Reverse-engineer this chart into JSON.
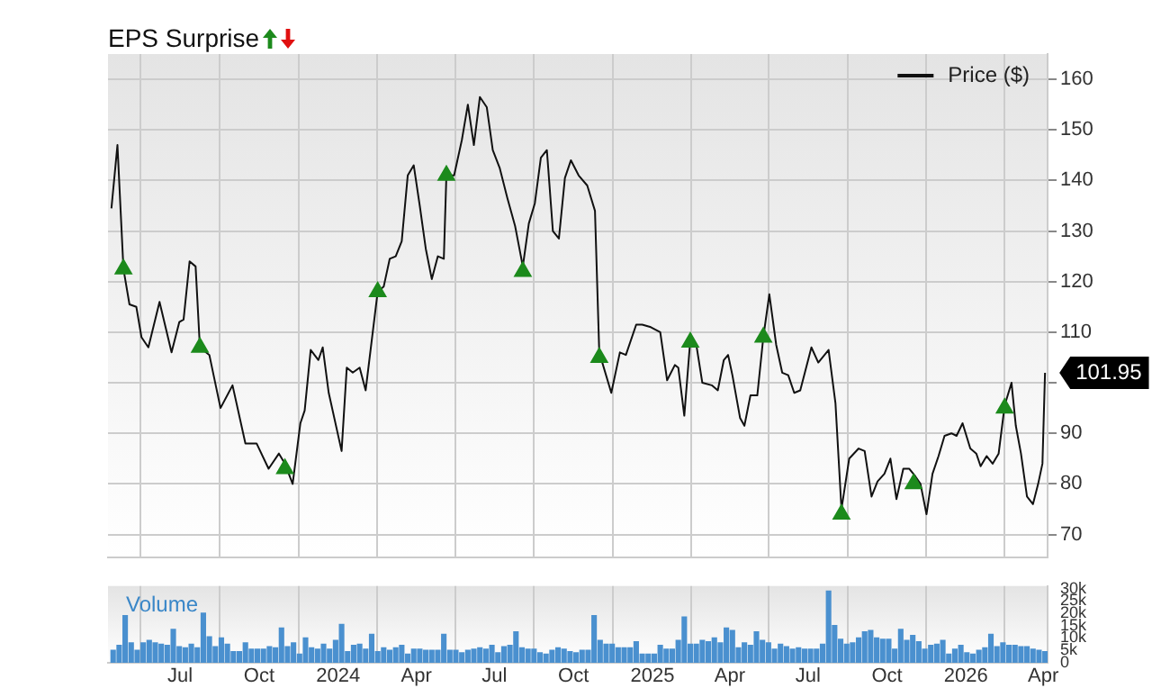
{
  "chart_data": [
    {
      "type": "line",
      "title": "EPS Surprise",
      "legend": "top right",
      "grid": true,
      "tick_labels": "y",
      "xlim": [
        "2023-04-08",
        "2026-04-06"
      ],
      "xticks": [
        {
          "value": "2023-07-01",
          "label": null
        },
        {
          "value": "2023-10-01",
          "label": null
        },
        {
          "value": "2024-01-01",
          "label": null
        },
        {
          "value": "2024-04-01",
          "label": null
        },
        {
          "value": "2024-07-01",
          "label": null
        },
        {
          "value": "2024-10-01",
          "label": null
        },
        {
          "value": "2025-01-01",
          "label": null
        },
        {
          "value": "2025-04-01",
          "label": null
        },
        {
          "value": "2025-07-01",
          "label": null
        },
        {
          "value": "2025-10-01",
          "label": null
        },
        {
          "value": "2026-01-01",
          "label": null
        },
        {
          "value": "2026-04-01",
          "label": null
        }
      ],
      "ylim": [
        65.5,
        165
      ],
      "yticks": [
        70,
        80,
        90,
        {
          "value": 100,
          "label": null
        },
        110,
        120,
        130,
        140,
        150,
        160
      ],
      "annotations": [
        {
          "text": "101.95",
          "x": "2026-04-03",
          "y": 101.95
        }
      ],
      "series": [
        {
          "name": "Price ($)",
          "type": "line",
          "color": "#111111",
          "x": [
            "2023-04-12",
            "2023-04-19",
            "2023-04-26",
            "2023-05-03",
            "2023-05-11",
            "2023-05-17",
            "2023-05-25",
            "2023-06-07",
            "2023-06-21",
            "2023-06-30",
            "2023-07-05",
            "2023-07-12",
            "2023-07-19",
            "2023-07-24",
            "2023-08-04",
            "2023-08-17",
            "2023-08-31",
            "2023-09-15",
            "2023-09-28",
            "2023-10-12",
            "2023-10-24",
            "2023-10-31",
            "2023-11-09",
            "2023-11-18",
            "2023-11-23",
            "2023-11-30",
            "2023-12-09",
            "2023-12-14",
            "2023-12-21",
            "2024-01-05",
            "2024-01-11",
            "2024-01-18",
            "2024-01-26",
            "2024-02-02",
            "2024-02-16",
            "2024-02-23",
            "2024-03-01",
            "2024-03-08",
            "2024-03-15",
            "2024-03-22",
            "2024-03-29",
            "2024-04-05",
            "2024-04-12",
            "2024-04-19",
            "2024-04-26",
            "2024-05-03",
            "2024-05-06",
            "2024-05-15",
            "2024-05-24",
            "2024-05-31",
            "2024-06-07",
            "2024-06-14",
            "2024-06-22",
            "2024-06-29",
            "2024-07-07",
            "2024-07-16",
            "2024-07-25",
            "2024-08-03",
            "2024-08-10",
            "2024-08-17",
            "2024-08-24",
            "2024-08-31",
            "2024-09-07",
            "2024-09-14",
            "2024-09-21",
            "2024-09-28",
            "2024-10-07",
            "2024-10-17",
            "2024-10-26",
            "2024-10-31",
            "2024-11-14",
            "2024-11-24",
            "2024-12-01",
            "2024-12-13",
            "2024-12-20",
            "2024-12-30",
            "2025-01-10",
            "2025-01-18",
            "2025-01-27",
            "2025-01-31",
            "2025-02-07",
            "2025-02-14",
            "2025-02-21",
            "2025-02-28",
            "2025-03-11",
            "2025-03-18",
            "2025-03-25",
            "2025-03-30",
            "2025-04-04",
            "2025-04-13",
            "2025-04-18",
            "2025-04-25",
            "2025-05-03",
            "2025-05-10",
            "2025-05-17",
            "2025-05-25",
            "2025-06-01",
            "2025-06-08",
            "2025-06-15",
            "2025-06-22",
            "2025-07-05",
            "2025-07-13",
            "2025-07-25",
            "2025-08-02",
            "2025-08-09",
            "2025-08-18",
            "2025-08-29",
            "2025-09-05",
            "2025-09-13",
            "2025-09-20",
            "2025-09-28",
            "2025-10-05",
            "2025-10-12",
            "2025-10-20",
            "2025-10-27",
            "2025-11-03",
            "2025-11-09",
            "2025-11-16",
            "2025-11-23",
            "2025-11-30",
            "2025-12-07",
            "2025-12-15",
            "2025-12-21",
            "2025-12-28",
            "2026-01-06",
            "2026-01-13",
            "2026-01-18",
            "2026-01-25",
            "2026-02-01",
            "2026-02-08",
            "2026-02-15",
            "2026-02-23",
            "2026-02-28",
            "2026-03-06",
            "2026-03-13",
            "2026-03-20",
            "2026-03-26",
            "2026-03-31",
            "2026-04-03"
          ],
          "values": [
            134.5,
            147,
            122.5,
            115.5,
            115,
            109,
            107,
            116,
            106,
            112,
            112.5,
            124,
            123,
            107,
            105.5,
            95,
            99.5,
            88,
            88,
            83,
            86,
            84,
            80,
            92,
            94.5,
            106.5,
            104.5,
            107,
            98,
            86.5,
            103,
            102,
            103,
            98.5,
            118,
            119,
            124.5,
            125,
            128,
            141,
            143,
            135,
            126.5,
            120.5,
            125,
            124.5,
            141,
            141,
            148,
            155,
            147,
            156.5,
            154.5,
            146,
            142.5,
            136.5,
            131,
            123,
            131.5,
            135.5,
            144.5,
            146,
            130,
            128.5,
            140.5,
            144,
            141,
            139,
            134,
            106,
            98,
            106,
            105.5,
            111.5,
            111.5,
            111,
            110,
            100.5,
            103.5,
            103,
            93.5,
            108.5,
            107.5,
            100,
            99.5,
            98.5,
            104.5,
            105.5,
            101.5,
            93,
            91.5,
            97.5,
            97.5,
            109,
            117.5,
            107.5,
            102,
            101.5,
            98,
            98.5,
            107,
            104,
            106.5,
            96,
            75,
            85,
            87,
            86.5,
            77.5,
            80.5,
            82,
            85,
            77,
            83,
            83,
            81.5,
            80,
            74,
            82,
            85.5,
            89.5,
            90,
            89.5,
            92,
            87,
            86,
            83.5,
            85.5,
            84,
            86,
            95.5,
            100,
            91.5,
            86,
            77.5,
            76,
            80,
            84,
            101.95
          ]
        },
        {
          "type": "scatter",
          "marker": "triangle",
          "color": "#1c8a1c",
          "x": [
            "2023-04-26",
            "2023-07-24",
            "2023-10-31",
            "2024-02-16",
            "2024-05-06",
            "2024-08-03",
            "2024-10-31",
            "2025-02-14",
            "2025-05-10",
            "2025-08-09",
            "2025-11-01",
            "2026-02-15"
          ],
          "values": [
            122.5,
            107,
            83,
            118,
            141,
            122,
            105,
            108,
            109,
            74,
            80,
            95
          ]
        }
      ]
    },
    {
      "type": "bar",
      "title": "Volume",
      "grid": "x",
      "xlim": [
        "2023-04-08",
        "2026-04-06"
      ],
      "xticks": [
        {
          "value": "2023-07-01",
          "label": "Jul"
        },
        {
          "value": "2023-10-01",
          "label": "Oct"
        },
        {
          "value": "2024-01-01",
          "label": "2024"
        },
        {
          "value": "2024-04-01",
          "label": "Apr"
        },
        {
          "value": "2024-07-01",
          "label": "Jul"
        },
        {
          "value": "2024-10-01",
          "label": "Oct"
        },
        {
          "value": "2025-01-01",
          "label": "2025"
        },
        {
          "value": "2025-04-01",
          "label": "Apr"
        },
        {
          "value": "2025-07-01",
          "label": "Jul"
        },
        {
          "value": "2025-10-01",
          "label": "Oct"
        },
        {
          "value": "2026-01-01",
          "label": "2026"
        },
        {
          "value": "2026-04-01",
          "label": "Apr"
        }
      ],
      "ylim": [
        0,
        31000
      ],
      "yticks": [
        0,
        {
          "value": 5000,
          "label": "5k"
        },
        {
          "value": 10000,
          "label": "10k"
        },
        {
          "value": 15000,
          "label": "15k"
        },
        {
          "value": 20000,
          "label": "20k"
        },
        {
          "value": 25000,
          "label": "25k"
        },
        {
          "value": 30000,
          "label": "30k"
        }
      ],
      "series": [
        {
          "color": "#4a90cf",
          "x": [
            "2023-04-14",
            "2023-04-21",
            "2023-04-28",
            "2023-05-05",
            "2023-05-12",
            "2023-05-19",
            "2023-05-26",
            "2023-06-02",
            "2023-06-09",
            "2023-06-16",
            "2023-06-23",
            "2023-06-30",
            "2023-07-07",
            "2023-07-14",
            "2023-07-21",
            "2023-07-28",
            "2023-08-04",
            "2023-08-11",
            "2023-08-18",
            "2023-08-25",
            "2023-09-01",
            "2023-09-08",
            "2023-09-15",
            "2023-09-22",
            "2023-09-29",
            "2023-10-06",
            "2023-10-13",
            "2023-10-20",
            "2023-10-27",
            "2023-11-03",
            "2023-11-10",
            "2023-11-17",
            "2023-11-24",
            "2023-12-01",
            "2023-12-08",
            "2023-12-15",
            "2023-12-22",
            "2023-12-29",
            "2024-01-05",
            "2024-01-12",
            "2024-01-19",
            "2024-01-26",
            "2024-02-02",
            "2024-02-09",
            "2024-02-16",
            "2024-02-23",
            "2024-03-01",
            "2024-03-08",
            "2024-03-15",
            "2024-03-22",
            "2024-03-29",
            "2024-04-05",
            "2024-04-12",
            "2024-04-19",
            "2024-04-26",
            "2024-05-03",
            "2024-05-10",
            "2024-05-17",
            "2024-05-24",
            "2024-05-31",
            "2024-06-07",
            "2024-06-14",
            "2024-06-21",
            "2024-06-28",
            "2024-07-05",
            "2024-07-12",
            "2024-07-19",
            "2024-07-26",
            "2024-08-02",
            "2024-08-09",
            "2024-08-16",
            "2024-08-23",
            "2024-08-30",
            "2024-09-06",
            "2024-09-13",
            "2024-09-20",
            "2024-09-27",
            "2024-10-04",
            "2024-10-11",
            "2024-10-18",
            "2024-10-25",
            "2024-11-01",
            "2024-11-08",
            "2024-11-15",
            "2024-11-22",
            "2024-11-29",
            "2024-12-06",
            "2024-12-13",
            "2024-12-20",
            "2024-12-27",
            "2025-01-03",
            "2025-01-10",
            "2025-01-17",
            "2025-01-24",
            "2025-01-31",
            "2025-02-07",
            "2025-02-14",
            "2025-02-21",
            "2025-02-28",
            "2025-03-07",
            "2025-03-14",
            "2025-03-21",
            "2025-03-28",
            "2025-04-04",
            "2025-04-11",
            "2025-04-18",
            "2025-04-25",
            "2025-05-02",
            "2025-05-09",
            "2025-05-16",
            "2025-05-23",
            "2025-05-30",
            "2025-06-06",
            "2025-06-13",
            "2025-06-20",
            "2025-06-27",
            "2025-07-04",
            "2025-07-11",
            "2025-07-18",
            "2025-07-25",
            "2025-08-01",
            "2025-08-08",
            "2025-08-15",
            "2025-08-22",
            "2025-08-29",
            "2025-09-05",
            "2025-09-12",
            "2025-09-19",
            "2025-09-26",
            "2025-10-03",
            "2025-10-10",
            "2025-10-17",
            "2025-10-24",
            "2025-10-31",
            "2025-11-07",
            "2025-11-14",
            "2025-11-21",
            "2025-11-28",
            "2025-12-05",
            "2025-12-12",
            "2025-12-19",
            "2025-12-26",
            "2026-01-02",
            "2026-01-09",
            "2026-01-16",
            "2026-01-23",
            "2026-01-30",
            "2026-02-06",
            "2026-02-13",
            "2026-02-20",
            "2026-02-27",
            "2026-03-06",
            "2026-03-13",
            "2026-03-20",
            "2026-03-27",
            "2026-04-03"
          ],
          "values": [
            5000,
            7000,
            19000,
            8000,
            5000,
            8000,
            9000,
            8000,
            7500,
            7000,
            13500,
            6500,
            6000,
            7500,
            6000,
            20000,
            10500,
            6500,
            10000,
            7500,
            4500,
            4500,
            8000,
            5500,
            5500,
            5500,
            6500,
            6000,
            14000,
            6500,
            8000,
            3500,
            10000,
            6000,
            5500,
            7500,
            5500,
            9000,
            15500,
            4500,
            7000,
            7500,
            5500,
            11500,
            4500,
            6000,
            5000,
            6000,
            7000,
            3500,
            5500,
            5500,
            5000,
            5000,
            5000,
            11500,
            5000,
            5000,
            4000,
            5000,
            5500,
            6000,
            5500,
            7000,
            4000,
            6500,
            7000,
            12500,
            6000,
            5500,
            5500,
            4000,
            3500,
            5000,
            6000,
            5500,
            4500,
            4000,
            5000,
            5000,
            19000,
            9000,
            7500,
            7500,
            6000,
            6000,
            6000,
            8500,
            3500,
            3500,
            3500,
            7000,
            5500,
            5500,
            9000,
            18500,
            7500,
            7500,
            9000,
            8500,
            10000,
            8000,
            14000,
            13000,
            6000,
            8000,
            7000,
            12500,
            9000,
            8000,
            5500,
            7500,
            6500,
            5500,
            6000,
            5500,
            5500,
            5500,
            7500,
            29000,
            15000,
            9500,
            7500,
            8000,
            10000,
            12500,
            13000,
            10000,
            9500,
            9500,
            5500,
            13500,
            9000,
            11000,
            8500,
            5500,
            7000,
            7500,
            9000,
            3500,
            5500,
            7000,
            4000,
            3500,
            5000,
            6000,
            11500,
            6500,
            8000,
            7000,
            7000,
            6500,
            6500,
            5500,
            5000,
            4500
          ]
        }
      ]
    }
  ]
}
